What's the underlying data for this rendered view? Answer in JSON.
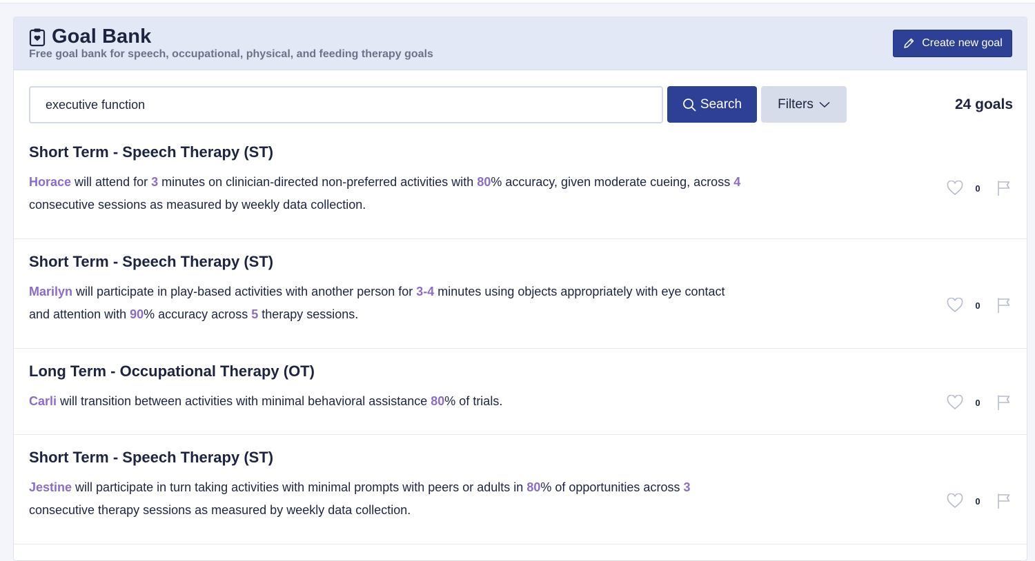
{
  "header": {
    "title": "Goal Bank",
    "subtitle": "Free goal bank for speech, occupational, physical, and feeding therapy goals",
    "create_label": "Create new goal"
  },
  "search": {
    "value": "executive function",
    "button_label": "Search",
    "filters_label": "Filters",
    "count_label": "24 goals"
  },
  "colors": {
    "accent": "#2e3f96",
    "highlight": "#8b6cc9"
  },
  "goals": [
    {
      "title": "Short Term - Speech Therapy (ST)",
      "segments": [
        {
          "t": "Horace",
          "hl": true
        },
        {
          "t": " will attend for ",
          "hl": false
        },
        {
          "t": "3",
          "hl": true
        },
        {
          "t": " minutes on clinician-directed non-preferred activities with ",
          "hl": false
        },
        {
          "t": "80",
          "hl": true
        },
        {
          "t": "% accuracy, given moderate cueing, across ",
          "hl": false
        },
        {
          "t": "4",
          "hl": true
        },
        {
          "t": " consecutive sessions as measured by weekly data collection.",
          "hl": false
        }
      ],
      "likes": "0"
    },
    {
      "title": "Short Term - Speech Therapy (ST)",
      "segments": [
        {
          "t": "Marilyn",
          "hl": true
        },
        {
          "t": " will participate in play-based activities with another person for ",
          "hl": false
        },
        {
          "t": "3-4",
          "hl": true
        },
        {
          "t": " minutes using objects appropriately with eye contact and attention with ",
          "hl": false
        },
        {
          "t": "90",
          "hl": true
        },
        {
          "t": "% accuracy across ",
          "hl": false
        },
        {
          "t": "5",
          "hl": true
        },
        {
          "t": " therapy sessions.",
          "hl": false
        }
      ],
      "likes": "0"
    },
    {
      "title": "Long Term - Occupational Therapy (OT)",
      "segments": [
        {
          "t": "Carli",
          "hl": true
        },
        {
          "t": " will transition between activities with minimal behavioral assistance ",
          "hl": false
        },
        {
          "t": "80",
          "hl": true
        },
        {
          "t": "% of trials.",
          "hl": false
        }
      ],
      "likes": "0"
    },
    {
      "title": "Short Term - Speech Therapy (ST)",
      "segments": [
        {
          "t": "Jestine",
          "hl": true
        },
        {
          "t": " will participate in turn taking activities with minimal prompts with peers or adults in ",
          "hl": false
        },
        {
          "t": "80",
          "hl": true
        },
        {
          "t": "% of opportunities across ",
          "hl": false
        },
        {
          "t": "3",
          "hl": true
        },
        {
          "t": " consecutive therapy sessions as measured by weekly data collection.",
          "hl": false
        }
      ],
      "likes": "0"
    }
  ]
}
